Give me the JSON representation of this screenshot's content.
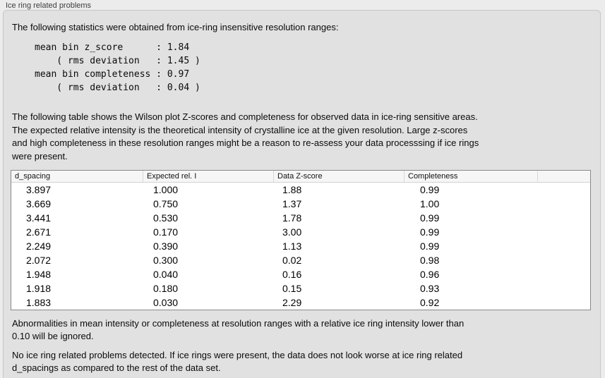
{
  "panel": {
    "title": "Ice ring related problems",
    "intro": "The following statistics were obtained from ice-ring insensitive resolution ranges:",
    "stats_block": "mean bin z_score      : 1.84\n    ( rms deviation   : 1.45 )\nmean bin completeness : 0.97\n    ( rms deviation   : 0.04 )",
    "table_description": "The following table shows the Wilson plot Z-scores and completeness for observed data in ice-ring sensitive areas.\nThe expected relative intensity is the theoretical intensity of crystalline ice at the given resolution. Large z-scores\nand high completeness in these resolution ranges might be a reason to re-assess your data processsing if ice rings\nwere present.",
    "ignore_note": "Abnormalities in mean intensity or completeness at resolution ranges with a relative ice ring intensity lower than\n0.10 will be ignored.",
    "conclusion_note": "No ice ring related problems detected. If ice rings were present, the data does not look worse at ice ring related\nd_spacings as compared to the rest of the data set."
  },
  "table": {
    "columns": [
      "d_spacing",
      "Expected rel. I",
      "Data Z-score",
      "Completeness"
    ],
    "rows": [
      [
        "3.897",
        "1.000",
        "1.88",
        "0.99"
      ],
      [
        "3.669",
        "0.750",
        "1.37",
        "1.00"
      ],
      [
        "3.441",
        "0.530",
        "1.78",
        "0.99"
      ],
      [
        "2.671",
        "0.170",
        "3.00",
        "0.99"
      ],
      [
        "2.249",
        "0.390",
        "1.13",
        "0.99"
      ],
      [
        "2.072",
        "0.300",
        "0.02",
        "0.98"
      ],
      [
        "1.948",
        "0.040",
        "0.16",
        "0.96"
      ],
      [
        "1.918",
        "0.180",
        "0.15",
        "0.93"
      ],
      [
        "1.883",
        "0.030",
        "2.29",
        "0.92"
      ]
    ]
  }
}
